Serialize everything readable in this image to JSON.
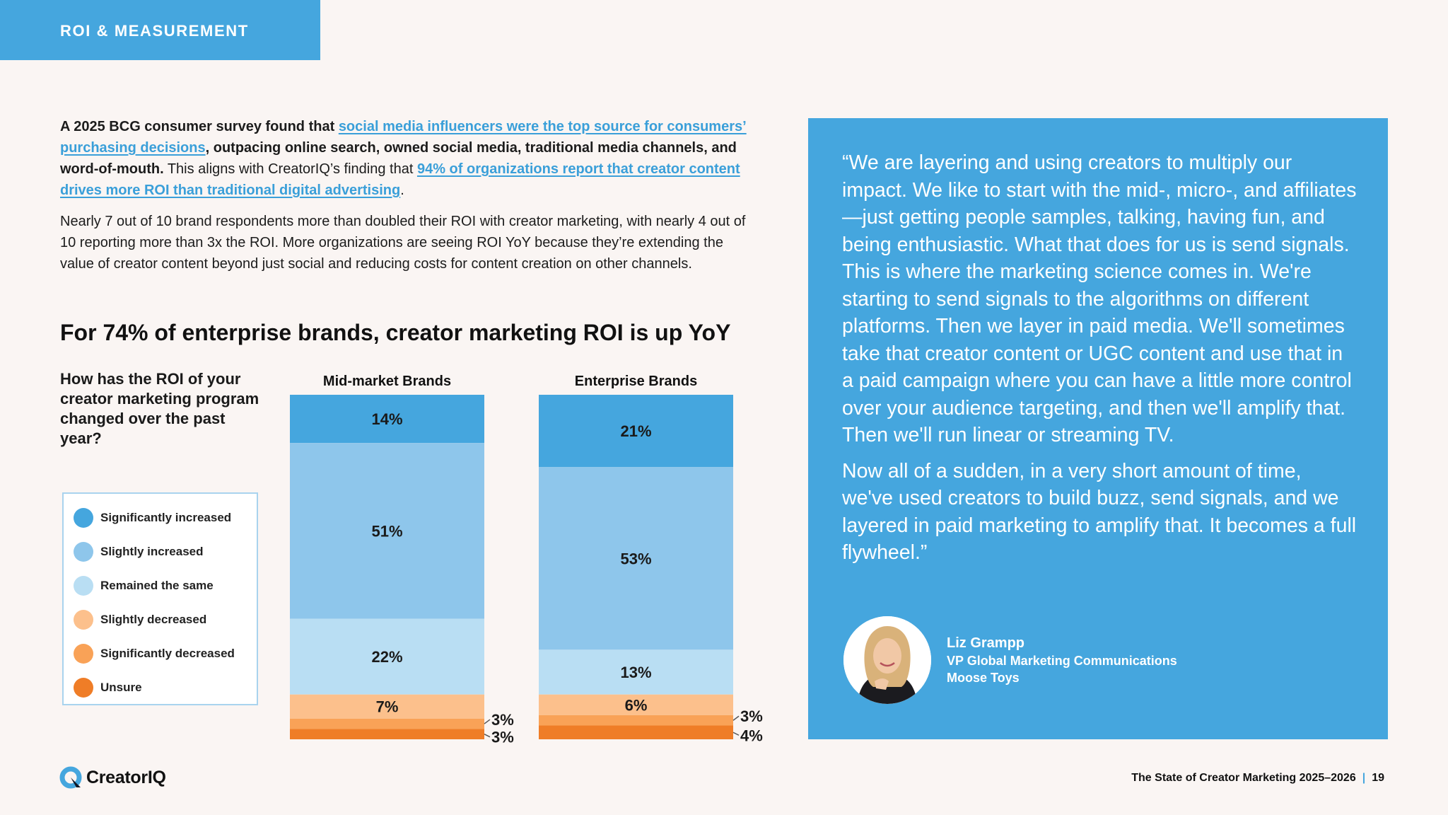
{
  "header": {
    "section_tag": "ROI & MEASUREMENT"
  },
  "intro": {
    "p1_a": "A 2025 BCG consumer survey found that ",
    "p1_link1": "social media influencers were the top source for consumers’ purchasing decisions",
    "p1_b": ", outpacing online search, owned social media, traditional media channels, and word-of-mouth.",
    "p1_c": " This aligns with CreatorIQ’s finding that ",
    "p1_link2": "94% of organizations report that creator content drives more ROI than traditional digital advertising",
    "p1_d": ".",
    "p2": "Nearly 7 out of 10 brand respondents more than doubled their ROI with creator marketing, with nearly 4 out of 10 reporting more than 3x the ROI. More organizations are seeing ROI YoY because they’re extending the value of creator content beyond just social and reducing costs for content creation on other channels."
  },
  "chart_data": {
    "type": "stacked-bar",
    "title": "For 74% of enterprise brands, creator marketing ROI is up YoY",
    "question": "How has the ROI of your creator marketing program changed over the past year?",
    "categories": [
      "Mid-market Brands",
      "Enterprise Brands"
    ],
    "series": [
      {
        "name": "Significantly increased",
        "color": "#45a6de",
        "values": [
          14,
          21
        ]
      },
      {
        "name": "Slightly increased",
        "color": "#8ec6eb",
        "values": [
          51,
          53
        ]
      },
      {
        "name": "Remained the same",
        "color": "#b9def3",
        "values": [
          22,
          13
        ]
      },
      {
        "name": "Slightly decreased",
        "color": "#fcc08c",
        "values": [
          7,
          6
        ]
      },
      {
        "name": "Significantly decreased",
        "color": "#f9a257",
        "values": [
          3,
          3
        ]
      },
      {
        "name": "Unsure",
        "color": "#ef7d27",
        "values": [
          3,
          4
        ]
      }
    ],
    "value_labels": [
      [
        "14%",
        "51%",
        "22%",
        "7%",
        "3%",
        "3%"
      ],
      [
        "21%",
        "53%",
        "13%",
        "6%",
        "3%",
        "4%"
      ]
    ]
  },
  "quote": {
    "p1": "“We are layering and using creators to multiply our impact. We like to start with the mid-, micro-, and affiliates—just getting people samples, talking, having fun, and being enthusiastic. What that does for us is send signals. This is where the marketing science comes in. We're starting to send signals to the algorithms on different platforms. Then we layer in paid media. We'll sometimes take that creator content or UGC content and use that in a paid campaign where you can have a little more control over your audience targeting, and then we'll amplify that. Then we'll run linear or streaming TV.",
    "p2": "Now all of a sudden, in a very short amount of time, we've used creators to build buzz, send signals, and we layered in paid marketing to amplify that. It becomes a full flywheel.”",
    "speaker_name": "Liz Grampp",
    "speaker_role": "VP Global Marketing Communications",
    "speaker_org": "Moose Toys"
  },
  "footer": {
    "logo_text": "CreatorIQ",
    "report_title": "The State of Creator Marketing 2025–2026",
    "page_number": "19"
  }
}
